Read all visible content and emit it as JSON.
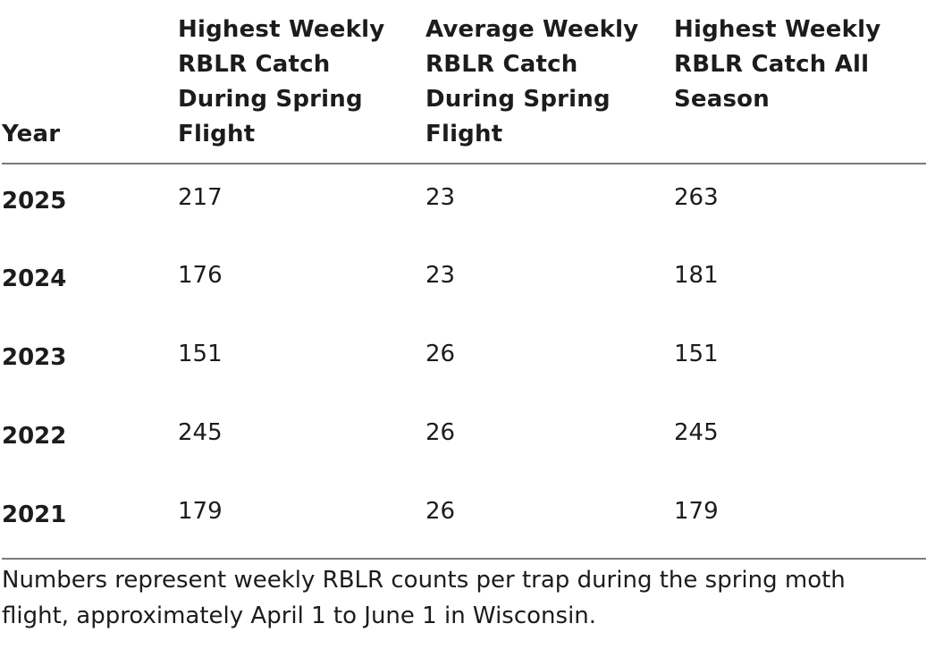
{
  "table": {
    "headers": [
      "Year",
      "Highest Weekly RBLR Catch During Spring Flight",
      "Average Weekly RBLR Catch During Spring Flight",
      "Highest Weekly RBLR Catch All Season"
    ],
    "rows": [
      [
        "2025",
        "217",
        "23",
        "263"
      ],
      [
        "2024",
        "176",
        "23",
        "181"
      ],
      [
        "2023",
        "151",
        "26",
        "151"
      ],
      [
        "2022",
        "245",
        "26",
        "245"
      ],
      [
        "2021",
        "179",
        "26",
        "179"
      ]
    ]
  },
  "footnote": "Numbers represent weekly RBLR counts per trap during the spring moth flight, approximately April 1 to June 1 in Wisconsin."
}
